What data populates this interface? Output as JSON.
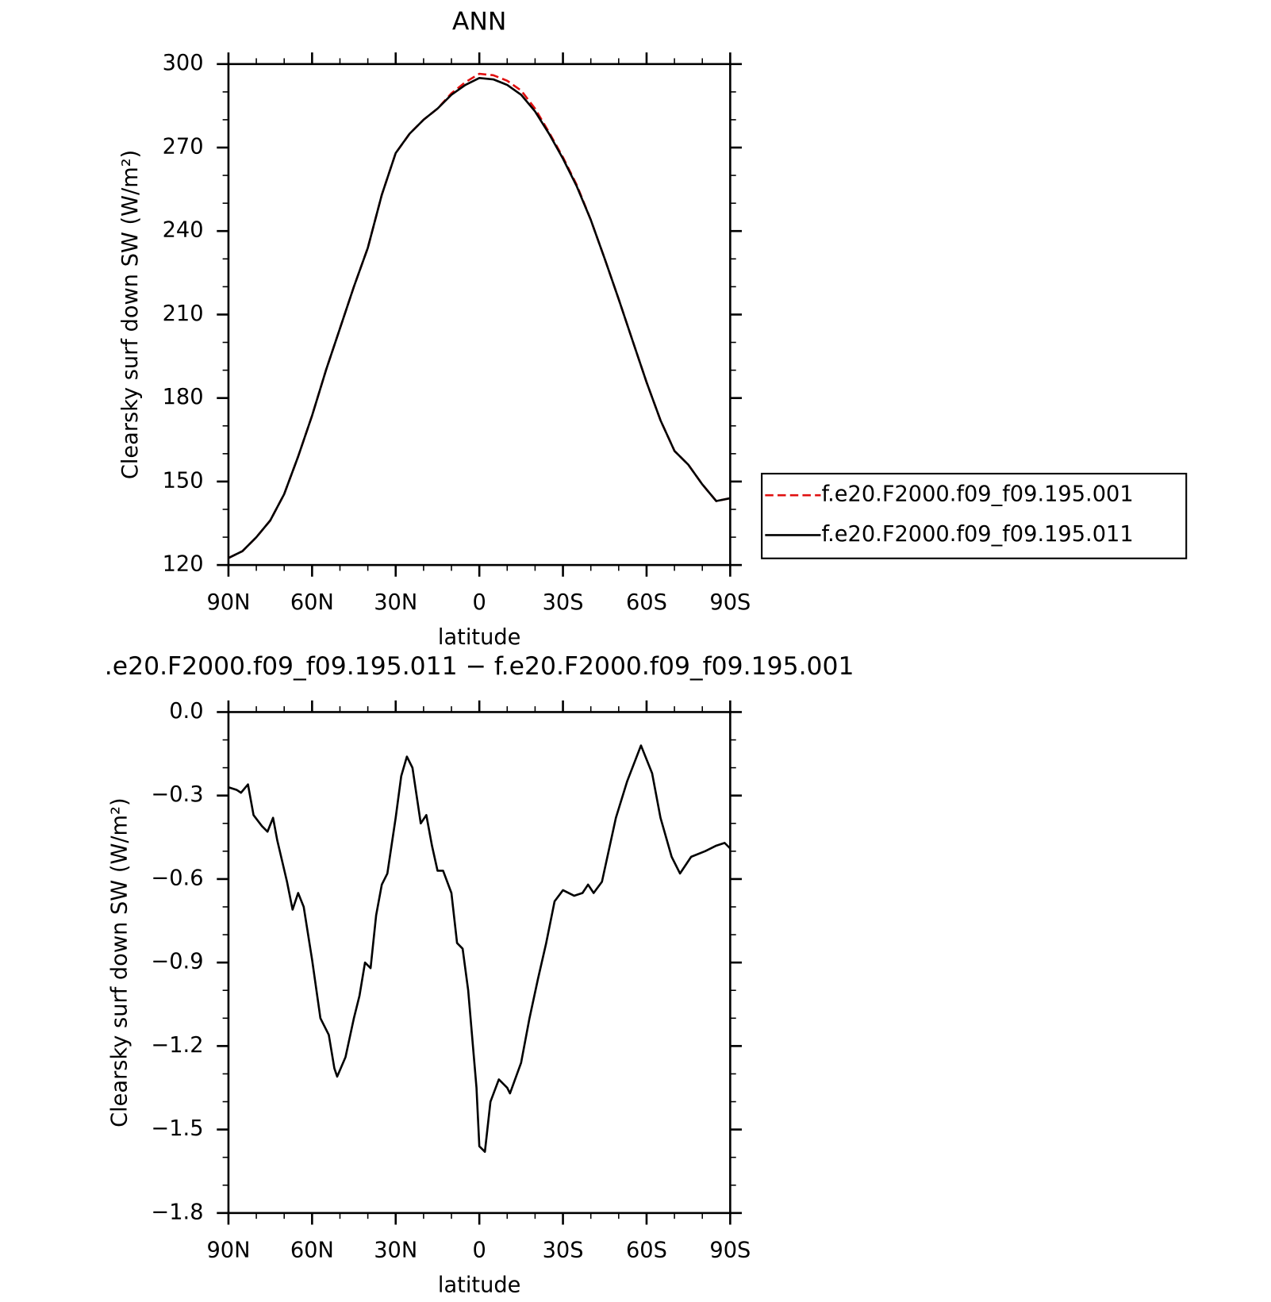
{
  "chart_data": [
    {
      "type": "line",
      "title": "ANN",
      "xlabel": "latitude",
      "ylabel": "Clearsky surf down SW (W/m²)",
      "x": [
        90,
        85,
        80,
        75,
        70,
        65,
        60,
        55,
        50,
        45,
        40,
        35,
        30,
        25,
        20,
        15,
        10,
        5,
        0,
        -5,
        -10,
        -15,
        -20,
        -25,
        -30,
        -35,
        -40,
        -45,
        -50,
        -55,
        -60,
        -65,
        -70,
        -75,
        -80,
        -85,
        -90
      ],
      "series": [
        {
          "name": "f.e20.F2000.f09_f09.195.001",
          "color": "#e01010",
          "dash": true,
          "values": [
            122.5,
            125,
            130,
            136,
            145.5,
            159,
            173.7,
            190,
            205,
            220,
            234,
            253,
            268,
            275,
            280,
            284,
            289.5,
            293.5,
            296.5,
            296,
            294,
            290.5,
            284,
            275.5,
            266.5,
            256.5,
            244,
            230,
            215.5,
            200.5,
            185.7,
            172,
            161,
            156,
            149,
            143,
            144
          ]
        },
        {
          "name": "f.e20.F2000.f09_f09.195.011",
          "color": "#000000",
          "dash": false,
          "values": [
            122.5,
            125,
            130,
            136,
            145.5,
            159,
            173.7,
            190,
            205,
            220,
            234,
            253,
            268,
            275,
            280,
            284,
            289,
            292.5,
            295,
            294.5,
            292.5,
            289,
            283,
            275,
            266,
            256,
            244,
            230,
            215.5,
            200.5,
            185.7,
            172,
            161,
            156,
            149,
            143,
            144
          ]
        }
      ],
      "xlim": [
        90,
        -90
      ],
      "xticks": [
        {
          "value": 90,
          "label": "90N"
        },
        {
          "value": 60,
          "label": "60N"
        },
        {
          "value": 30,
          "label": "30N"
        },
        0,
        {
          "value": -30,
          "label": "30S"
        },
        {
          "value": -60,
          "label": "60S"
        },
        {
          "value": -90,
          "label": "90S"
        }
      ],
      "minor_xticks": [
        80,
        70,
        50,
        40,
        20,
        10,
        -10,
        -20,
        -40,
        -50,
        -70,
        -80
      ],
      "ylim": [
        120,
        300
      ],
      "yticks": [
        120,
        150,
        180,
        210,
        240,
        270,
        300
      ],
      "minor_yticks": [
        130,
        140,
        160,
        170,
        190,
        200,
        220,
        230,
        250,
        260,
        280,
        290
      ],
      "legend": "right"
    },
    {
      "type": "line",
      "title": ".e20.F2000.f09_f09.195.011 − f.e20.F2000.f09_f09.195.001",
      "xlabel": "latitude",
      "ylabel": "Clearsky surf down SW (W/m²)",
      "x": [
        90,
        87,
        85.5,
        83,
        81,
        78,
        76,
        74,
        72.5,
        69,
        67,
        65,
        63,
        60,
        57,
        54,
        52,
        51,
        48,
        45,
        43,
        41,
        39,
        37,
        35,
        33,
        30,
        28,
        26,
        24,
        21,
        19,
        17,
        15,
        13,
        10,
        8,
        6,
        4,
        1,
        0,
        -2,
        -4,
        -7,
        -10,
        -11,
        -15,
        -18,
        -21,
        -24,
        -27,
        -30,
        -34,
        -37,
        -39,
        -41,
        -44,
        -49,
        -53,
        -58,
        -62,
        -65,
        -69,
        -72,
        -76,
        -81,
        -85,
        -88,
        -90
      ],
      "series": [
        {
          "color": "#000000",
          "values": [
            -0.27,
            -0.28,
            -0.29,
            -0.26,
            -0.37,
            -0.41,
            -0.43,
            -0.38,
            -0.46,
            -0.61,
            -0.71,
            -0.65,
            -0.7,
            -0.89,
            -1.1,
            -1.16,
            -1.28,
            -1.31,
            -1.24,
            -1.1,
            -1.02,
            -0.9,
            -0.92,
            -0.73,
            -0.62,
            -0.58,
            -0.38,
            -0.23,
            -0.16,
            -0.2,
            -0.4,
            -0.37,
            -0.48,
            -0.57,
            -0.57,
            -0.65,
            -0.83,
            -0.85,
            -1.0,
            -1.35,
            -1.56,
            -1.58,
            -1.4,
            -1.32,
            -1.35,
            -1.37,
            -1.26,
            -1.1,
            -0.96,
            -0.83,
            -0.68,
            -0.64,
            -0.66,
            -0.65,
            -0.62,
            -0.65,
            -0.61,
            -0.38,
            -0.25,
            -0.12,
            -0.22,
            -0.38,
            -0.52,
            -0.58,
            -0.52,
            -0.5,
            -0.48,
            -0.47,
            -0.49
          ]
        }
      ],
      "xlim": [
        90,
        -90
      ],
      "xticks": [
        {
          "value": 90,
          "label": "90N"
        },
        {
          "value": 60,
          "label": "60N"
        },
        {
          "value": 30,
          "label": "30N"
        },
        0,
        {
          "value": -30,
          "label": "30S"
        },
        {
          "value": -60,
          "label": "60S"
        },
        {
          "value": -90,
          "label": "90S"
        }
      ],
      "minor_xticks": [
        80,
        70,
        50,
        40,
        20,
        10,
        -10,
        -20,
        -40,
        -50,
        -70,
        -80
      ],
      "ylim": [
        -1.8,
        0
      ],
      "yticks": [
        {
          "value": -1.8,
          "label": "−1.8"
        },
        {
          "value": -1.5,
          "label": "−1.5"
        },
        {
          "value": -1.2,
          "label": "−1.2"
        },
        {
          "value": -0.9,
          "label": "−0.9"
        },
        {
          "value": -0.6,
          "label": "−0.6"
        },
        {
          "value": -0.3,
          "label": "−0.3"
        },
        {
          "value": 0,
          "label": "0.0"
        }
      ],
      "minor_yticks": [
        -1.7,
        -1.6,
        -1.4,
        -1.3,
        -1.1,
        -1.0,
        -0.8,
        -0.7,
        -0.5,
        -0.4,
        -0.2,
        -0.1
      ]
    }
  ]
}
